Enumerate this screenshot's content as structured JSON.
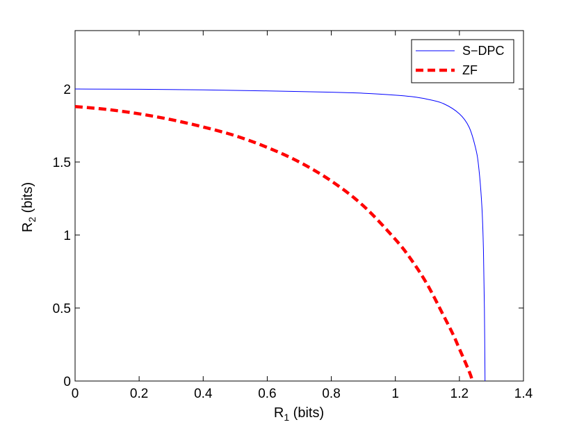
{
  "chart_data": {
    "type": "line",
    "xlabel": "R",
    "xlabel_sub": "1",
    "xlabel_unit": " (bits)",
    "ylabel": "R",
    "ylabel_sub": "2",
    "ylabel_unit": " (bits)",
    "xlim": [
      0,
      1.4
    ],
    "ylim": [
      0,
      2.4
    ],
    "xticks": [
      0,
      0.2,
      0.4,
      0.6,
      0.8,
      1,
      1.2,
      1.4
    ],
    "xtick_labels": [
      "0",
      "0.2",
      "0.4",
      "0.6",
      "0.8",
      "1",
      "1.2",
      "1.4"
    ],
    "yticks": [
      0,
      0.5,
      1,
      1.5,
      2
    ],
    "ytick_labels": [
      "0",
      "0.5",
      "1",
      "1.5",
      "2"
    ],
    "grid": false,
    "legend_position": "top-right",
    "series": [
      {
        "name": "S−DPC",
        "color": "#0000ff",
        "style": "solid",
        "x": [
          0,
          0.2,
          0.4,
          0.6,
          0.8,
          0.9,
          1.0,
          1.05,
          1.1,
          1.15,
          1.2,
          1.23,
          1.25,
          1.26,
          1.27,
          1.275,
          1.278,
          1.28
        ],
        "y": [
          2.0,
          1.998,
          1.994,
          1.987,
          1.978,
          1.971,
          1.958,
          1.948,
          1.93,
          1.9,
          1.83,
          1.74,
          1.6,
          1.47,
          1.2,
          0.9,
          0.5,
          0.0
        ]
      },
      {
        "name": "ZF",
        "color": "#ff0000",
        "style": "dashed",
        "x": [
          0,
          0.1,
          0.2,
          0.3,
          0.4,
          0.5,
          0.6,
          0.7,
          0.8,
          0.9,
          1.0,
          1.05,
          1.1,
          1.15,
          1.18,
          1.2,
          1.22,
          1.235,
          1.24
        ],
        "y": [
          1.88,
          1.86,
          1.83,
          1.79,
          1.74,
          1.68,
          1.6,
          1.5,
          1.37,
          1.2,
          0.97,
          0.83,
          0.66,
          0.45,
          0.32,
          0.22,
          0.12,
          0.04,
          0.0
        ]
      }
    ]
  }
}
